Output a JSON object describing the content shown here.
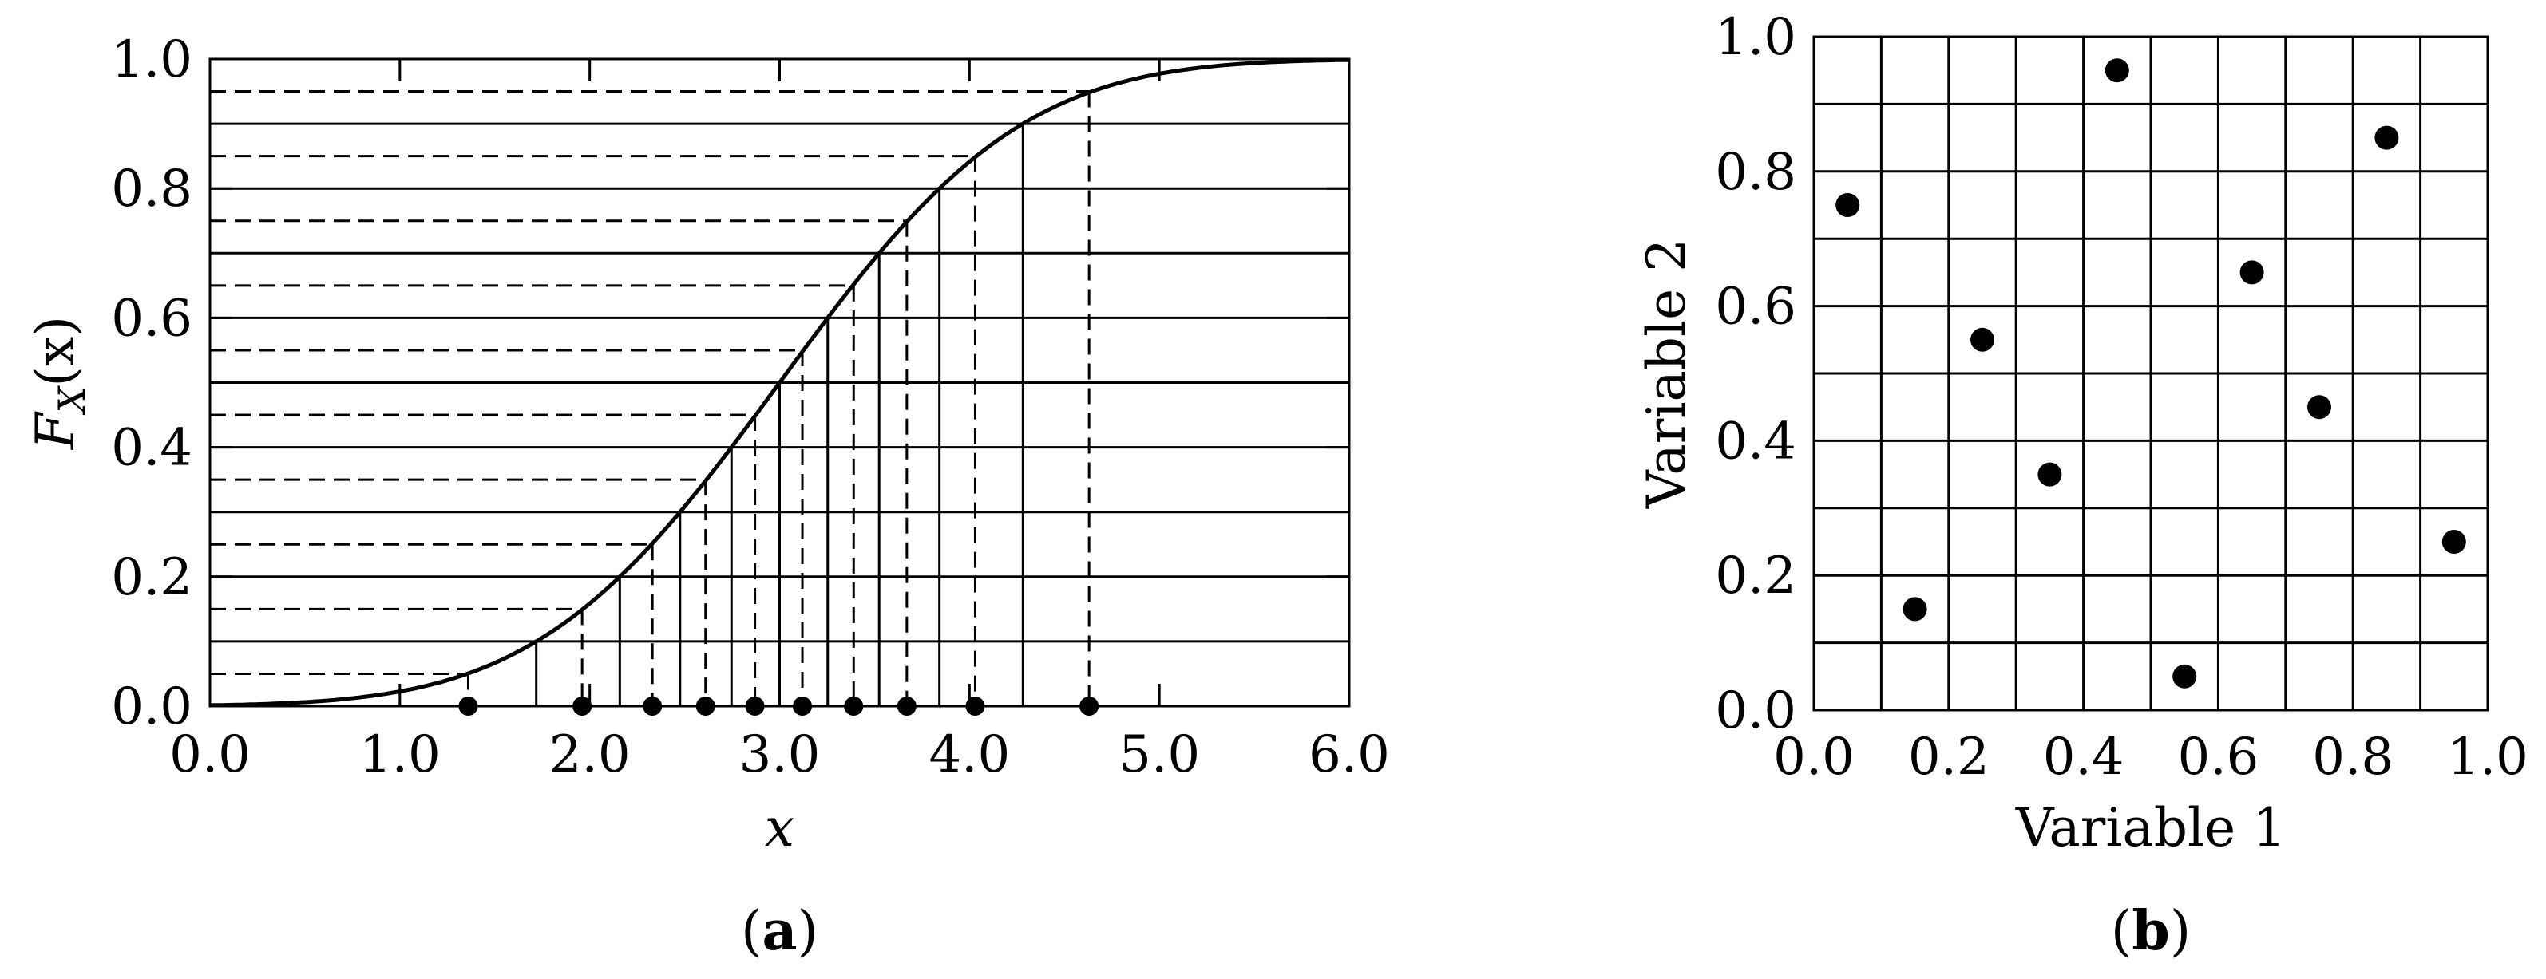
{
  "chart_data": [
    {
      "type": "line",
      "panel_label": "(a)",
      "panel_label_bold": "a",
      "xlabel": "x",
      "ylabel": "F_X(x)",
      "ylabel_main": "F",
      "ylabel_sub": "X",
      "ylabel_arg": "(x)",
      "xlim": [
        0,
        6
      ],
      "ylim": [
        0,
        1
      ],
      "x_ticks": [
        "0.0",
        "1.0",
        "2.0",
        "3.0",
        "4.0",
        "5.0",
        "6.0"
      ],
      "y_ticks": [
        "0.0",
        "0.2",
        "0.4",
        "0.6",
        "0.8",
        "1.0"
      ],
      "curve": {
        "distribution": "normal",
        "mean": 3.0,
        "sd": 1.0
      },
      "stratum_boundaries": [
        0.1,
        0.2,
        0.3,
        0.4,
        0.5,
        0.6,
        0.7,
        0.8,
        0.9
      ],
      "sampled_probabilities": [
        0.05,
        0.15,
        0.25,
        0.35,
        0.45,
        0.55,
        0.65,
        0.75,
        0.85,
        0.95
      ],
      "sample_points_x": [
        1.36,
        1.96,
        2.33,
        2.61,
        2.87,
        3.12,
        3.39,
        3.67,
        4.03,
        4.63
      ],
      "grid": false
    },
    {
      "type": "scatter",
      "panel_label": "(b)",
      "panel_label_bold": "b",
      "xlabel": "Variable 1",
      "ylabel": "Variable 2",
      "xlim": [
        0,
        1
      ],
      "ylim": [
        0,
        1
      ],
      "x_ticks": [
        "0.0",
        "0.2",
        "0.4",
        "0.6",
        "0.8",
        "1.0"
      ],
      "y_ticks": [
        "0.0",
        "0.2",
        "0.4",
        "0.6",
        "0.8",
        "1.0"
      ],
      "grid": true,
      "grid_step": 0.1,
      "points": [
        {
          "x": 0.05,
          "y": 0.75
        },
        {
          "x": 0.15,
          "y": 0.15
        },
        {
          "x": 0.25,
          "y": 0.55
        },
        {
          "x": 0.35,
          "y": 0.35
        },
        {
          "x": 0.45,
          "y": 0.95
        },
        {
          "x": 0.55,
          "y": 0.05
        },
        {
          "x": 0.65,
          "y": 0.65
        },
        {
          "x": 0.75,
          "y": 0.45
        },
        {
          "x": 0.85,
          "y": 0.85
        },
        {
          "x": 0.95,
          "y": 0.25
        }
      ]
    }
  ]
}
